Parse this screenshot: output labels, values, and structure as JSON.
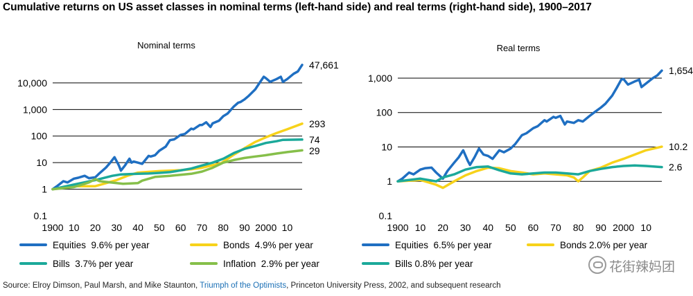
{
  "title": "Cumulative returns on US asset classes in nominal terms (left-hand side) and real terms (right-hand side), 1900–2017",
  "source": {
    "prefix": "Source: Elroy Dimson, Paul Marsh, and Mike Staunton, ",
    "book": "Triumph of the Optimists",
    "suffix": ", Princeton University Press, 2002, and subsequent research"
  },
  "watermark": "花街辣妈团",
  "colors": {
    "equities": "#1f6fc2",
    "bonds": "#f7d21a",
    "bills": "#1ba99a",
    "inflation": "#86bf4a",
    "grid": "#000000"
  },
  "chart_data": [
    {
      "type": "line",
      "title": "Nominal terms",
      "y_scale": "log",
      "ylim": [
        0.1,
        60000
      ],
      "y_ticks": [
        "0.1",
        "1",
        "10",
        "100",
        "1,000",
        "10,000"
      ],
      "x_ticks": [
        "1900",
        "10",
        "20",
        "30",
        "40",
        "50",
        "60",
        "70",
        "80",
        "90",
        "2000",
        "10"
      ],
      "xlim": [
        1900,
        2017
      ],
      "series": [
        {
          "name": "Equities",
          "legend": "Equities  9.6% per year",
          "color_key": "equities",
          "end_label": "47,661",
          "x": [
            1900,
            1902,
            1905,
            1907,
            1910,
            1912,
            1915,
            1917,
            1920,
            1922,
            1925,
            1927,
            1929,
            1931,
            1932,
            1934,
            1936,
            1937,
            1938,
            1940,
            1942,
            1945,
            1946,
            1948,
            1950,
            1953,
            1955,
            1957,
            1960,
            1962,
            1965,
            1966,
            1969,
            1970,
            1972,
            1974,
            1975,
            1978,
            1980,
            1982,
            1985,
            1987,
            1988,
            1990,
            1992,
            1995,
            1997,
            1999,
            2000,
            2002,
            2005,
            2007,
            2008,
            2010,
            2013,
            2015,
            2017
          ],
          "y": [
            1,
            1.3,
            2.0,
            1.8,
            2.5,
            2.7,
            3.2,
            2.6,
            2.8,
            4.0,
            6.5,
            10,
            16,
            8,
            5,
            8,
            14,
            10,
            11,
            10,
            9,
            18,
            17,
            19,
            28,
            40,
            70,
            75,
            110,
            120,
            190,
            180,
            260,
            260,
            330,
            220,
            300,
            380,
            560,
            700,
            1300,
            1800,
            1900,
            2400,
            3300,
            5700,
            10000,
            17000,
            15000,
            11000,
            14000,
            17000,
            11000,
            14000,
            22000,
            27000,
            47661
          ]
        },
        {
          "name": "Bonds",
          "legend": "Bonds  4.9% per year",
          "color_key": "bonds",
          "end_label": "293",
          "x": [
            1900,
            1910,
            1917,
            1920,
            1930,
            1935,
            1940,
            1950,
            1955,
            1960,
            1965,
            1970,
            1975,
            1979,
            1985,
            1990,
            1995,
            2000,
            2005,
            2010,
            2017
          ],
          "y": [
            1,
            1.3,
            1.3,
            1.3,
            2.2,
            3.2,
            4.2,
            4.8,
            5.0,
            5.2,
            5.6,
            6.4,
            8,
            9.5,
            20,
            35,
            60,
            90,
            130,
            180,
            293
          ]
        },
        {
          "name": "Bills",
          "legend": "Bills  3.7% per year",
          "color_key": "bills",
          "end_label": "74",
          "x": [
            1900,
            1910,
            1920,
            1928,
            1932,
            1940,
            1945,
            1950,
            1955,
            1960,
            1965,
            1970,
            1975,
            1980,
            1985,
            1990,
            1995,
            2000,
            2005,
            2008,
            2017
          ],
          "y": [
            1,
            1.5,
            2.2,
            3.2,
            3.6,
            3.8,
            3.9,
            4.1,
            4.4,
            5.1,
            6.0,
            7.8,
            10,
            14,
            23,
            33,
            42,
            55,
            64,
            72,
            74
          ]
        },
        {
          "name": "Inflation",
          "legend": "Inflation  2.9% per year",
          "color_key": "inflation",
          "end_label": "29",
          "x": [
            1900,
            1910,
            1917,
            1920,
            1922,
            1933,
            1940,
            1942,
            1948,
            1955,
            1960,
            1965,
            1970,
            1975,
            1980,
            1985,
            1990,
            1995,
            2000,
            2005,
            2010,
            2017
          ],
          "y": [
            1,
            1.2,
            1.8,
            2.4,
            2.0,
            1.6,
            1.7,
            2.1,
            2.9,
            3.2,
            3.5,
            3.8,
            4.6,
            6.4,
            10,
            12.5,
            15,
            17,
            19,
            22,
            25,
            29
          ]
        }
      ]
    },
    {
      "type": "line",
      "title": "Real terms",
      "y_scale": "log",
      "ylim": [
        0.1,
        2000
      ],
      "y_ticks": [
        "0.1",
        "1",
        "10",
        "100",
        "1,000"
      ],
      "x_ticks": [
        "1900",
        "10",
        "20",
        "30",
        "40",
        "50",
        "60",
        "70",
        "80",
        "90",
        "2000",
        "10"
      ],
      "xlim": [
        1900,
        2017
      ],
      "series": [
        {
          "name": "Equities",
          "legend": "Equities  6.5% per year",
          "color_key": "equities",
          "end_label": "1,654",
          "x": [
            1900,
            1902,
            1905,
            1907,
            1910,
            1912,
            1915,
            1917,
            1920,
            1922,
            1925,
            1927,
            1929,
            1931,
            1932,
            1934,
            1936,
            1938,
            1940,
            1942,
            1945,
            1947,
            1950,
            1952,
            1955,
            1957,
            1960,
            1962,
            1965,
            1966,
            1969,
            1970,
            1972,
            1974,
            1975,
            1978,
            1980,
            1982,
            1985,
            1987,
            1990,
            1992,
            1995,
            1997,
            1999,
            2000,
            2002,
            2005,
            2007,
            2008,
            2010,
            2013,
            2015,
            2017
          ],
          "y": [
            1,
            1.2,
            1.8,
            1.6,
            2.2,
            2.4,
            2.5,
            1.8,
            1.2,
            2.0,
            3.5,
            5,
            8,
            4,
            3,
            5,
            9,
            6,
            5.5,
            4.5,
            8,
            7,
            9,
            12,
            22,
            25,
            35,
            40,
            60,
            55,
            75,
            70,
            80,
            45,
            55,
            50,
            60,
            55,
            80,
            100,
            140,
            180,
            310,
            520,
            900,
            950,
            650,
            800,
            900,
            550,
            700,
            1000,
            1200,
            1654
          ]
        },
        {
          "name": "Bonds",
          "legend": "Bonds 2.0% per year",
          "color_key": "bonds",
          "end_label": "10.2",
          "x": [
            1900,
            1910,
            1917,
            1920,
            1925,
            1930,
            1935,
            1940,
            1945,
            1950,
            1955,
            1960,
            1965,
            1970,
            1975,
            1978,
            1980,
            1982,
            1985,
            1990,
            1995,
            2000,
            2005,
            2010,
            2017
          ],
          "y": [
            1,
            1.1,
            0.8,
            0.65,
            1.0,
            1.5,
            2.0,
            2.5,
            2.4,
            2.0,
            1.8,
            1.6,
            1.7,
            1.6,
            1.5,
            1.3,
            1.0,
            1.3,
            2.0,
            2.5,
            3.5,
            4.5,
            6,
            8,
            10.2
          ]
        },
        {
          "name": "Bills",
          "legend": "Bills 0.8% per year",
          "color_key": "bills",
          "end_label": "2.6",
          "x": [
            1900,
            1910,
            1917,
            1920,
            1925,
            1930,
            1935,
            1940,
            1945,
            1950,
            1955,
            1960,
            1965,
            1970,
            1975,
            1980,
            1985,
            1990,
            1995,
            2000,
            2005,
            2010,
            2017
          ],
          "y": [
            1,
            1.2,
            1.0,
            1.3,
            1.6,
            2.2,
            2.6,
            2.7,
            2.1,
            1.7,
            1.6,
            1.7,
            1.8,
            1.8,
            1.7,
            1.6,
            2.0,
            2.3,
            2.6,
            2.8,
            2.9,
            2.8,
            2.6
          ]
        }
      ]
    }
  ]
}
